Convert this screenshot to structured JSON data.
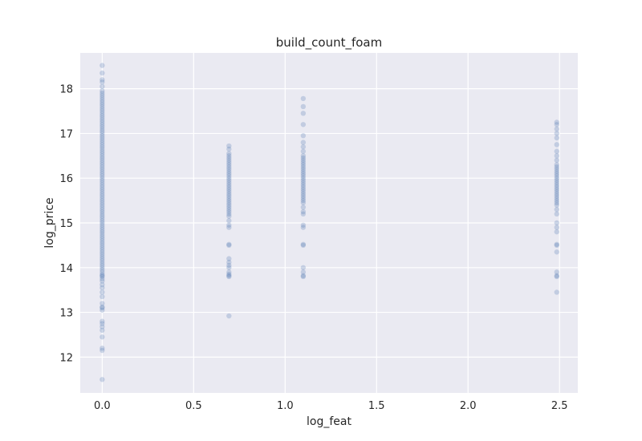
{
  "chart_data": {
    "type": "scatter",
    "title": "build_count_foam",
    "xlabel": "log_feat",
    "ylabel": "log_price",
    "xlim": [
      -0.12,
      2.6
    ],
    "ylim": [
      11.2,
      18.8
    ],
    "xticks": [
      "0.0",
      "0.5",
      "1.0",
      "1.5",
      "2.0",
      "2.5"
    ],
    "yticks": [
      "12",
      "13",
      "14",
      "15",
      "16",
      "17",
      "18"
    ],
    "grid": true,
    "style": {
      "background": "#EAEAF2",
      "grid_color": "#FFFFFF",
      "point_color": "#4C72B0",
      "point_alpha": 0.25
    },
    "series": [
      {
        "x": 0.0,
        "y": [
          11.5,
          12.15,
          12.2,
          12.45,
          12.6,
          12.68,
          12.75,
          12.8,
          13.05,
          13.1,
          13.12,
          13.2,
          13.35,
          13.45,
          13.55,
          13.62,
          13.7,
          13.75,
          13.8,
          13.82,
          13.85,
          13.9,
          13.95,
          14.0,
          14.05,
          14.1,
          14.15,
          14.2,
          14.25,
          14.3,
          14.35,
          14.4,
          14.45,
          14.5,
          14.55,
          14.6,
          14.65,
          14.7,
          14.75,
          14.8,
          14.85,
          14.9,
          14.95,
          15.0,
          15.05,
          15.1,
          15.15,
          15.2,
          15.25,
          15.3,
          15.35,
          15.4,
          15.45,
          15.5,
          15.55,
          15.6,
          15.65,
          15.7,
          15.75,
          15.8,
          15.85,
          15.9,
          15.95,
          16.0,
          16.05,
          16.1,
          16.15,
          16.2,
          16.25,
          16.3,
          16.35,
          16.4,
          16.45,
          16.5,
          16.55,
          16.6,
          16.65,
          16.7,
          16.75,
          16.8,
          16.85,
          16.9,
          16.95,
          17.0,
          17.05,
          17.1,
          17.15,
          17.2,
          17.25,
          17.3,
          17.35,
          17.4,
          17.45,
          17.5,
          17.55,
          17.6,
          17.65,
          17.7,
          17.75,
          17.8,
          17.85,
          17.9,
          17.95,
          18.05,
          18.15,
          18.2,
          18.35,
          18.52
        ]
      },
      {
        "x": 0.693,
        "y": [
          12.92,
          13.8,
          13.82,
          13.85,
          13.9,
          14.0,
          14.05,
          14.12,
          14.2,
          14.5,
          14.52,
          14.9,
          14.95,
          15.05,
          15.15,
          15.2,
          15.25,
          15.3,
          15.35,
          15.4,
          15.45,
          15.5,
          15.55,
          15.6,
          15.65,
          15.7,
          15.75,
          15.8,
          15.85,
          15.9,
          15.95,
          16.0,
          16.05,
          16.1,
          16.15,
          16.2,
          16.25,
          16.3,
          16.35,
          16.4,
          16.45,
          16.5,
          16.55,
          16.65,
          16.72
        ]
      },
      {
        "x": 1.099,
        "y": [
          13.8,
          13.82,
          13.9,
          14.0,
          14.5,
          14.52,
          14.9,
          14.95,
          15.2,
          15.25,
          15.35,
          15.45,
          15.5,
          15.55,
          15.6,
          15.65,
          15.7,
          15.75,
          15.8,
          15.85,
          15.9,
          15.95,
          16.0,
          16.05,
          16.1,
          16.15,
          16.2,
          16.25,
          16.3,
          16.35,
          16.4,
          16.45,
          16.5,
          16.6,
          16.7,
          16.8,
          16.95,
          17.2,
          17.45,
          17.6,
          17.78
        ]
      },
      {
        "x": 2.485,
        "y": [
          13.45,
          13.8,
          13.82,
          13.9,
          14.35,
          14.5,
          14.52,
          14.8,
          14.9,
          15.0,
          15.2,
          15.3,
          15.4,
          15.45,
          15.5,
          15.55,
          15.6,
          15.65,
          15.7,
          15.75,
          15.8,
          15.85,
          15.9,
          15.95,
          16.0,
          16.05,
          16.1,
          16.15,
          16.2,
          16.25,
          16.3,
          16.4,
          16.5,
          16.6,
          16.75,
          16.9,
          17.0,
          17.1,
          17.2,
          17.25
        ]
      }
    ]
  }
}
